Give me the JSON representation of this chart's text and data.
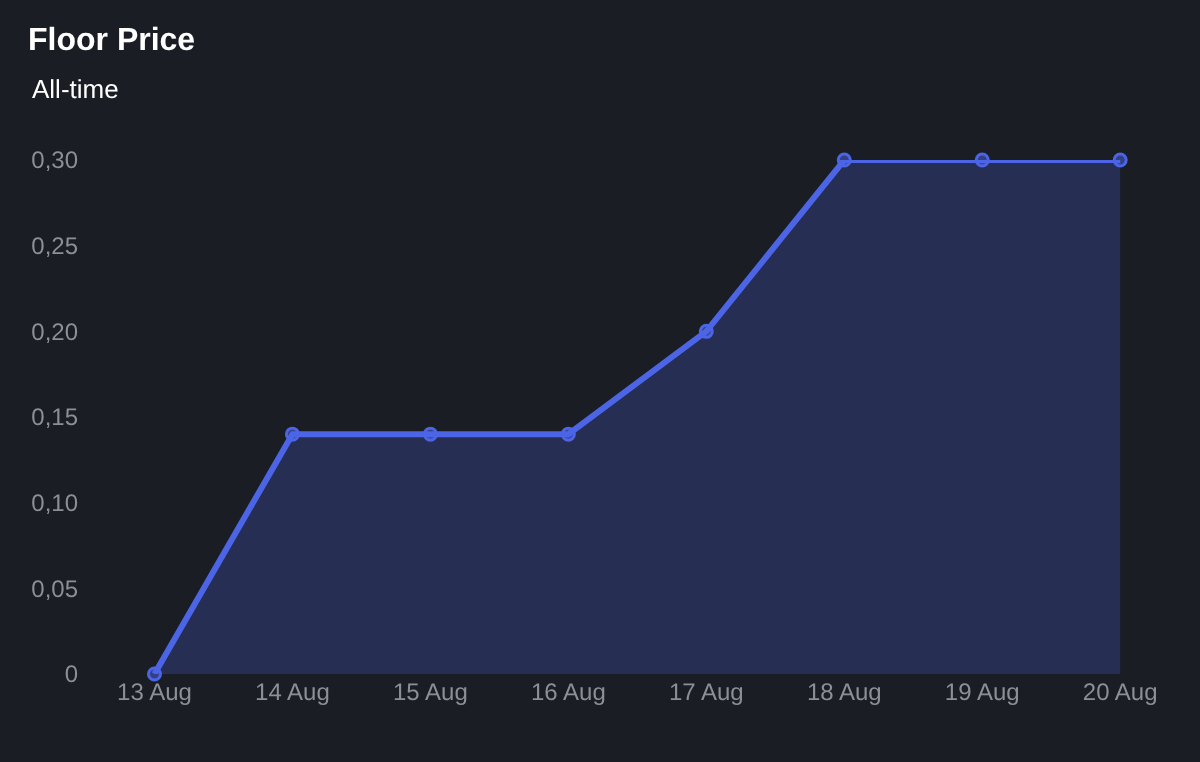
{
  "chart_data": {
    "type": "area",
    "title": "Floor Price",
    "subtitle": "All-time",
    "categories": [
      "13 Aug",
      "14 Aug",
      "15 Aug",
      "16 Aug",
      "17 Aug",
      "18 Aug",
      "19 Aug",
      "20 Aug"
    ],
    "series": [
      {
        "color": "#4c64e6",
        "values": [
          0,
          0.14,
          0.14,
          0.14,
          0.2,
          0.3,
          0.3,
          0.3
        ]
      }
    ],
    "ylim": [
      0,
      0.3
    ],
    "yticks": [
      {
        "value": 0,
        "label": "0"
      },
      {
        "value": 0.05,
        "label": "0,05"
      },
      {
        "value": 0.1,
        "label": "0,10"
      },
      {
        "value": 0.15,
        "label": "0,15"
      },
      {
        "value": 0.2,
        "label": "0,20"
      },
      {
        "value": 0.25,
        "label": "0,25"
      },
      {
        "value": 0.3,
        "label": "0,30"
      }
    ],
    "marker": "circle",
    "line_style": "solid",
    "grid": false
  }
}
